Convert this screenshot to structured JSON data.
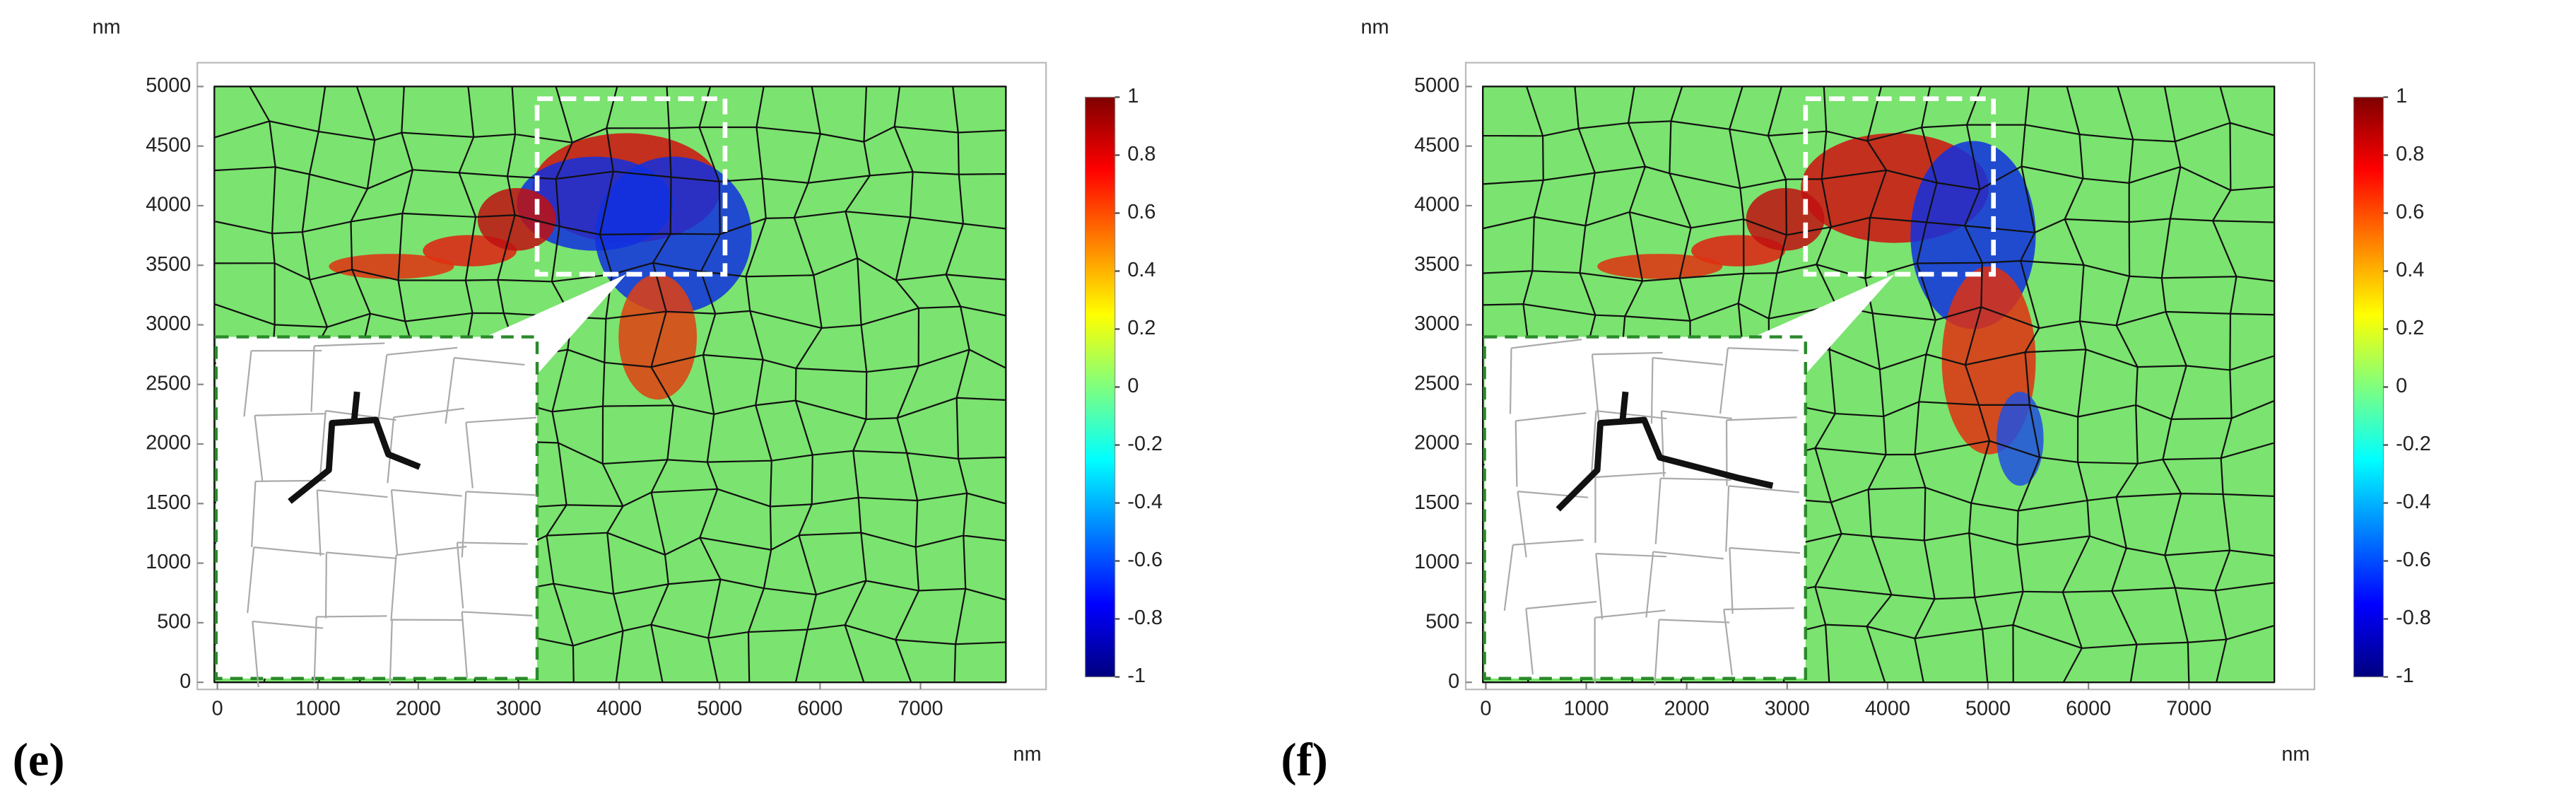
{
  "chart_data": [
    {
      "type": "image",
      "panel_label": "(e)",
      "x_label": "nm",
      "y_label": "nm",
      "xlim": [
        -200,
        8250
      ],
      "ylim": [
        -60,
        5200
      ],
      "xticks": [
        0,
        1000,
        2000,
        3000,
        4000,
        5000,
        6000,
        7000
      ],
      "yticks": [
        0,
        500,
        1000,
        1500,
        2000,
        2500,
        3000,
        3500,
        4000,
        4500,
        5000
      ],
      "colorbar": {
        "lim": [
          -1,
          1
        ],
        "ticks": [
          1,
          0.8,
          0.6,
          0.4,
          0.2,
          0,
          -0.2,
          -0.4,
          -0.6,
          -0.8,
          -1
        ],
        "colormap": [
          "#00007f",
          "#0000ff",
          "#0080ff",
          "#00ffff",
          "#7fff7f",
          "#ffff00",
          "#ff8000",
          "#ff0000",
          "#7f0000"
        ]
      }
    },
    {
      "type": "image",
      "panel_label": "(f)",
      "x_label": "nm",
      "y_label": "nm",
      "xlim": [
        -200,
        8250
      ],
      "ylim": [
        -60,
        5200
      ],
      "xticks": [
        0,
        1000,
        2000,
        3000,
        4000,
        5000,
        6000,
        7000
      ],
      "yticks": [
        0,
        500,
        1000,
        1500,
        2000,
        2500,
        3000,
        3500,
        4000,
        4500,
        5000
      ],
      "colorbar": {
        "lim": [
          -1,
          1
        ],
        "ticks": [
          1,
          0.8,
          0.6,
          0.4,
          0.2,
          0,
          -0.2,
          -0.4,
          -0.6,
          -0.8,
          -1
        ],
        "colormap": [
          "#00007f",
          "#0000ff",
          "#0080ff",
          "#00ffff",
          "#7fff7f",
          "#ffff00",
          "#ff8000",
          "#ff0000",
          "#7f0000"
        ]
      }
    }
  ]
}
